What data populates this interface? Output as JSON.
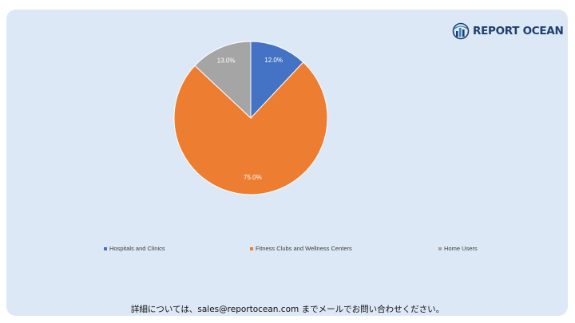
{
  "brand": {
    "name": "REPORT OCEAN",
    "logo_icon": "bar-chart-globe-icon",
    "color": "#1d3f6e"
  },
  "chart_data": {
    "type": "pie",
    "categories": [
      "Hospitals and Clinics",
      "Fitness Clubs and Wellness Centers",
      "Home Users"
    ],
    "values": [
      12.0,
      75.0,
      13.0
    ],
    "labels": [
      "12.0%",
      "75.0%",
      "13.0%"
    ],
    "colors": [
      "#4472c4",
      "#ed7d31",
      "#a5a5a5"
    ],
    "label_colors": [
      "#ffffff",
      "#ffffff",
      "#ffffff"
    ],
    "legend_position": "bottom",
    "start_angle": "12 o'clock",
    "direction": "clockwise"
  },
  "footer": {
    "text": "詳細については、sales@reportocean.com までメールでお問い合わせください。"
  }
}
